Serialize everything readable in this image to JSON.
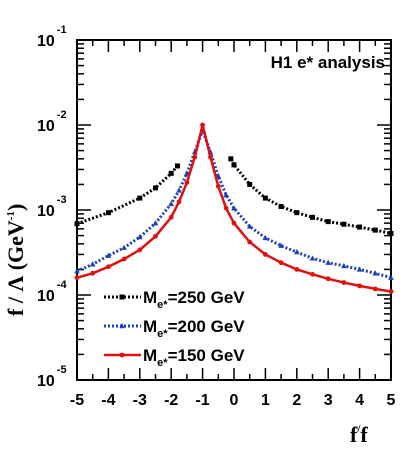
{
  "chart_data": {
    "type": "line",
    "title": "H1 e* analysis",
    "xlabel_main": "f",
    "xlabel_prime": "/",
    "xlabel_den": "f",
    "ylabel": "f / Λ (GeV",
    "ylabel_exp": "-1",
    "ylabel_close": ")",
    "xlim": [
      -5,
      5
    ],
    "ylim": [
      1e-05,
      0.1
    ],
    "ylog": true,
    "grid": false,
    "legend_position": "bottom-left",
    "x_ticks": [
      {
        "value": -5,
        "label": "-5"
      },
      {
        "value": -4,
        "label": "-4"
      },
      {
        "value": -3,
        "label": "-3"
      },
      {
        "value": -2,
        "label": "-2"
      },
      {
        "value": -1,
        "label": "-1"
      },
      {
        "value": 0,
        "label": "0"
      },
      {
        "value": 1,
        "label": "1"
      },
      {
        "value": 2,
        "label": "2"
      },
      {
        "value": 3,
        "label": "3"
      },
      {
        "value": 4,
        "label": "4"
      },
      {
        "value": 5,
        "label": "5"
      }
    ],
    "y_ticks": [
      {
        "exp": -1,
        "base": "10",
        "sup": "-1"
      },
      {
        "exp": -2,
        "base": "10",
        "sup": "-2"
      },
      {
        "exp": -3,
        "base": "10",
        "sup": "-3"
      },
      {
        "exp": -4,
        "base": "10",
        "sup": "-4"
      },
      {
        "exp": -5,
        "base": "10",
        "sup": "-5"
      }
    ],
    "series": [
      {
        "label_base": "M",
        "label_sub": "e*",
        "label_rest": "=250 GeV",
        "color": "#000000",
        "style": "dotted",
        "marker": "square",
        "segments": [
          {
            "x": [
              -5.0,
              -4.0,
              -3.0,
              -2.5,
              -2.0,
              -1.8
            ],
            "y": [
              0.00069,
              0.00093,
              0.00138,
              0.00182,
              0.0027,
              0.0033
            ]
          },
          {
            "x": [
              -0.1,
              0.0,
              0.5,
              1.0,
              1.5,
              2.0,
              2.5,
              3.0,
              3.5,
              4.0,
              4.5,
              5.0
            ],
            "y": [
              0.004,
              0.0034,
              0.002,
              0.00138,
              0.0011,
              0.00093,
              0.00082,
              0.00073,
              0.00068,
              0.00063,
              0.00058,
              0.00053
            ]
          }
        ]
      },
      {
        "label_base": "M",
        "label_sub": "e*",
        "label_rest": "=200 GeV",
        "color": "#1f3fbf",
        "style": "dotted",
        "marker": "triangle",
        "segments": [
          {
            "x": [
              -5.0,
              -4.5,
              -4.0,
              -3.5,
              -3.0,
              -2.5,
              -2.0,
              -1.75,
              -1.5,
              -1.25,
              -1.0,
              -0.75,
              -0.5,
              -0.25,
              0.0,
              0.5,
              1.0,
              1.5,
              2.0,
              2.5,
              3.0,
              3.5,
              4.0,
              4.5,
              5.0
            ],
            "y": [
              0.00019,
              0.00023,
              0.00029,
              0.00036,
              0.00048,
              0.0007,
              0.00118,
              0.0017,
              0.0027,
              0.0048,
              0.0087,
              0.0048,
              0.0025,
              0.0015,
              0.00105,
              0.00064,
              0.00047,
              0.00038,
              0.00032,
              0.00027,
              0.00024,
              0.00022,
              0.0002,
              0.00018,
              0.00016
            ]
          }
        ]
      },
      {
        "label_base": "M",
        "label_sub": "e*",
        "label_rest": "=150 GeV",
        "color": "#e01010",
        "style": "solid",
        "marker": "circle",
        "segments": [
          {
            "x": [
              -5.0,
              -4.5,
              -4.0,
              -3.5,
              -3.0,
              -2.5,
              -2.0,
              -1.75,
              -1.5,
              -1.25,
              -1.0,
              -0.75,
              -0.5,
              -0.25,
              0.0,
              0.5,
              1.0,
              1.5,
              2.0,
              2.5,
              3.0,
              3.5,
              4.0,
              4.5,
              5.0
            ],
            "y": [
              0.00016,
              0.00018,
              0.000215,
              0.000265,
              0.00034,
              0.00049,
              0.00082,
              0.00125,
              0.0021,
              0.0042,
              0.01,
              0.0042,
              0.0019,
              0.00105,
              0.0007,
              0.00042,
              0.0003,
              0.00024,
              0.0002,
              0.000175,
              0.000155,
              0.00014,
              0.000128,
              0.000118,
              0.00011
            ]
          }
        ]
      }
    ]
  }
}
